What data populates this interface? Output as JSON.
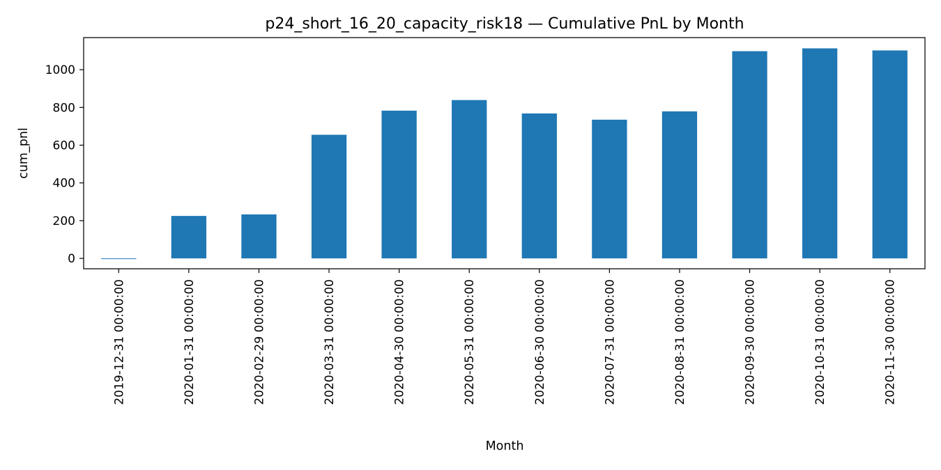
{
  "chart_data": {
    "type": "bar",
    "title": "p24_short_16_20_capacity_risk18 — Cumulative PnL by Month",
    "xlabel": "Month",
    "ylabel": "cum_pnl",
    "categories": [
      "2019-12-31 00:00:00",
      "2020-01-31 00:00:00",
      "2020-02-29 00:00:00",
      "2020-03-31 00:00:00",
      "2020-04-30 00:00:00",
      "2020-05-31 00:00:00",
      "2020-06-30 00:00:00",
      "2020-07-31 00:00:00",
      "2020-08-31 00:00:00",
      "2020-09-30 00:00:00",
      "2020-10-31 00:00:00",
      "2020-11-30 00:00:00"
    ],
    "values": [
      -3,
      225,
      233,
      655,
      783,
      839,
      768,
      735,
      779,
      1098,
      1113,
      1102
    ],
    "ylim": [
      -55,
      1170
    ],
    "yticks": [
      0,
      200,
      400,
      600,
      800,
      1000
    ],
    "grid": false,
    "legend": "none",
    "bar_color": "#1f77b4"
  }
}
